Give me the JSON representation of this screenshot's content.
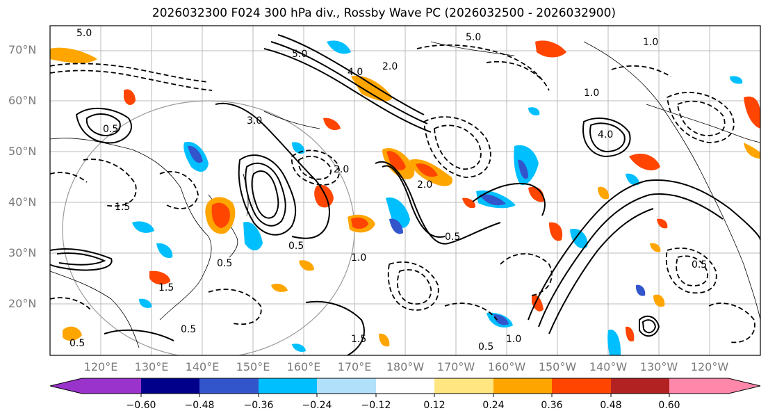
{
  "title": "2026032300 F024 300 hPa div., Rossby Wave PC (2026032500 - 2026032900)",
  "map": {
    "lat_labels": [
      "70°N",
      "60°N",
      "50°N",
      "40°N",
      "30°N",
      "20°N"
    ],
    "lon_labels": [
      "120°E",
      "130°E",
      "140°E",
      "150°E",
      "160°E",
      "170°E",
      "180°W",
      "170°W",
      "160°W",
      "150°W",
      "140°W",
      "130°W",
      "120°W"
    ],
    "contour_labels": [
      "0.5",
      "1.0",
      "1.5",
      "2.0",
      "3.0",
      "4.0",
      "5.0"
    ],
    "label_color": "#7a7a7a"
  },
  "colorbar": {
    "ticks": [
      "−0.60",
      "−0.48",
      "−0.36",
      "−0.24",
      "−0.12",
      "0.12",
      "0.24",
      "0.36",
      "0.48",
      "0.60"
    ],
    "colors": [
      "#9933cc",
      "#00008b",
      "#3355cc",
      "#00bfff",
      "#b0e0fa",
      "#ffffff",
      "#ffe680",
      "#ffa500",
      "#ff4500",
      "#b22222",
      "#ff88aa"
    ]
  }
}
